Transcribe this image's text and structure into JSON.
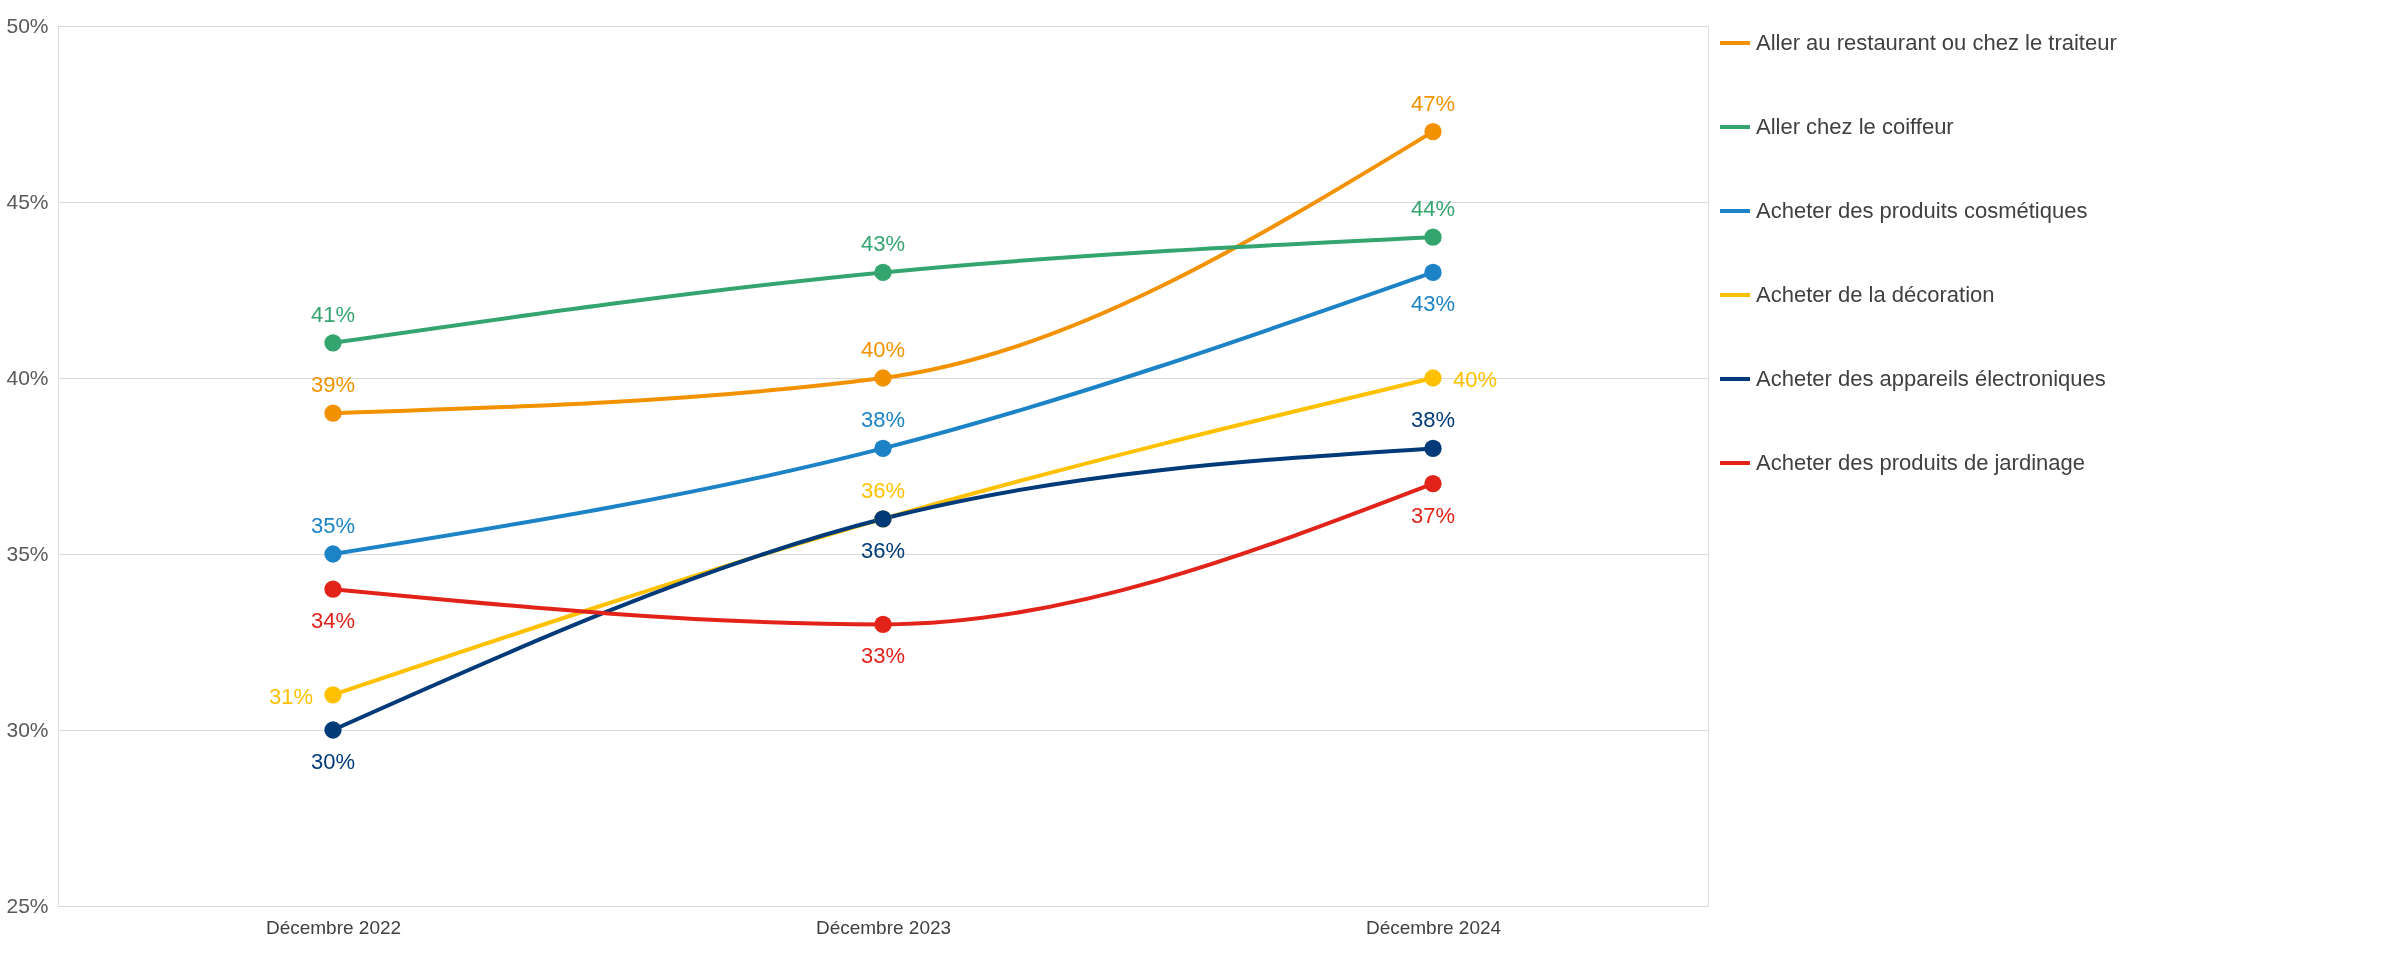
{
  "chart_data": {
    "type": "line",
    "categories": [
      "Décembre 2022",
      "Décembre 2023",
      "Décembre 2024"
    ],
    "ylim": [
      25,
      50
    ],
    "yticks": [
      {
        "value": 25,
        "label": "25%"
      },
      {
        "value": 30,
        "label": "30%"
      },
      {
        "value": 35,
        "label": "35%"
      },
      {
        "value": 40,
        "label": "40%"
      },
      {
        "value": 45,
        "label": "45%"
      },
      {
        "value": 50,
        "label": "50%"
      }
    ],
    "grid": "y",
    "legend": "right",
    "marker": "circle",
    "line_style": "solid",
    "series": [
      {
        "name": "Aller au restaurant ou chez le traiteur",
        "color": "#f39200",
        "values": [
          39,
          40,
          47
        ],
        "value_labels": [
          "39%",
          "40%",
          "47%"
        ]
      },
      {
        "name": "Aller chez le coiffeur",
        "color": "#34a56f",
        "values": [
          41,
          43,
          44
        ],
        "value_labels": [
          "41%",
          "43%",
          "44%"
        ]
      },
      {
        "name": "Acheter des produits cosmétiques",
        "color": "#1c83c6",
        "values": [
          35,
          38,
          43
        ],
        "value_labels": [
          "35%",
          "38%",
          "43%"
        ]
      },
      {
        "name": "Acheter de la décoration",
        "color": "#ffc000",
        "values": [
          31,
          36,
          40
        ],
        "value_labels": [
          "31%",
          "36%",
          "40%"
        ]
      },
      {
        "name": "Acheter des appareils électroniques",
        "color": "#003a78",
        "values": [
          30,
          36,
          38
        ],
        "value_labels": [
          "30%",
          "36%",
          "38%"
        ]
      },
      {
        "name": "Acheter des produits de jardinage",
        "color": "#e2231a",
        "values": [
          34,
          33,
          37
        ],
        "value_labels": [
          "34%",
          "33%",
          "37%"
        ]
      }
    ]
  }
}
